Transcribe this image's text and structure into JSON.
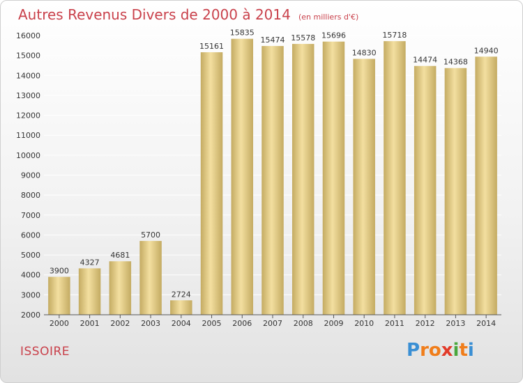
{
  "chart_data": {
    "type": "bar",
    "title": "Autres Revenus Divers de 2000 à 2014",
    "subtitle": "(en milliers d'€)",
    "categories": [
      "2000",
      "2001",
      "2002",
      "2003",
      "2004",
      "2005",
      "2006",
      "2007",
      "2008",
      "2009",
      "2010",
      "2011",
      "2012",
      "2013",
      "2014"
    ],
    "values": [
      3900,
      4327,
      4681,
      5700,
      2724,
      15161,
      15835,
      15474,
      15578,
      15696,
      14830,
      15718,
      14474,
      14368,
      14940
    ],
    "ylim": [
      2000,
      16000
    ],
    "yticks": [
      2000,
      3000,
      4000,
      5000,
      6000,
      7000,
      8000,
      9000,
      10000,
      11000,
      12000,
      13000,
      14000,
      15000,
      16000
    ],
    "grid": true,
    "xlabel": "",
    "ylabel": ""
  },
  "footer": {
    "city": "ISSOIRE",
    "logo_letters": [
      "P",
      "r",
      "o",
      "x",
      "i",
      "t",
      "i"
    ],
    "logo_colors": [
      "#3a8fd4",
      "#f07d1a",
      "#f07d1a",
      "#e23b2a",
      "#4aa73e",
      "#f07d1a",
      "#3a8fd4"
    ]
  },
  "colors": {
    "title": "#c9414b",
    "bar_light": "#f3dfa0",
    "bar_dark": "#c4ab62",
    "grid": "#ffffff",
    "axis": "#555555"
  }
}
